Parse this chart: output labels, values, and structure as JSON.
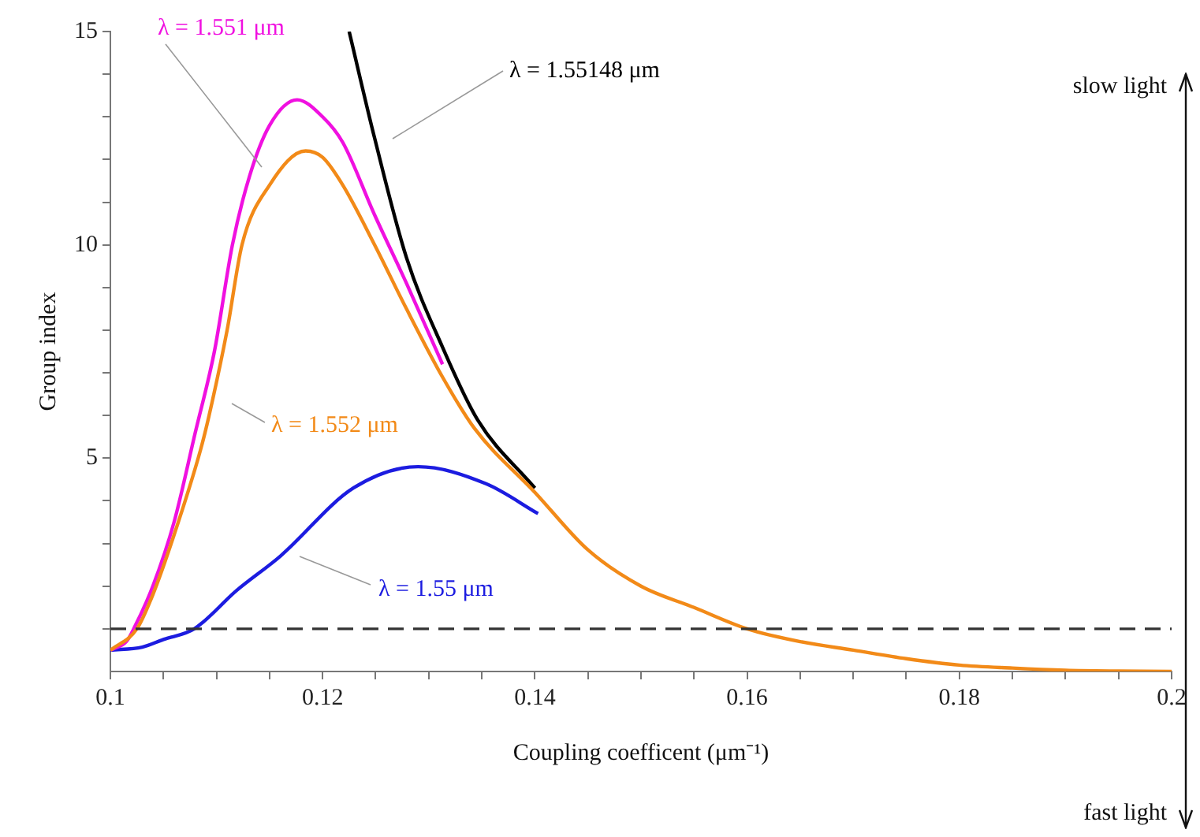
{
  "chart_data": {
    "type": "line",
    "xlabel": "Coupling coefficent (μm⁻¹)",
    "ylabel": "Group index",
    "xlim": [
      0.1,
      0.2
    ],
    "ylim": [
      0,
      15
    ],
    "xticks": [
      0.1,
      {
        "value": 0.105,
        "label": null
      },
      0.12,
      {
        "value": 0.11,
        "label": null
      },
      {
        "value": 0.115,
        "label": null
      },
      {
        "value": 0.125,
        "label": null
      },
      {
        "value": 0.13,
        "label": null
      },
      {
        "value": 0.135,
        "label": null
      },
      0.14,
      {
        "value": 0.145,
        "label": null
      },
      {
        "value": 0.15,
        "label": null
      },
      {
        "value": 0.155,
        "label": null
      },
      0.16,
      {
        "value": 0.165,
        "label": null
      },
      {
        "value": 0.17,
        "label": null
      },
      {
        "value": 0.175,
        "label": null
      },
      0.18,
      {
        "value": 0.185,
        "label": null
      },
      {
        "value": 0.19,
        "label": null
      },
      {
        "value": 0.195,
        "label": null
      },
      0.2
    ],
    "yticks": [
      {
        "value": 1,
        "label": null
      },
      {
        "value": 2,
        "label": null
      },
      {
        "value": 3,
        "label": null
      },
      {
        "value": 4,
        "label": null
      },
      5,
      {
        "value": 6,
        "label": null
      },
      {
        "value": 7,
        "label": null
      },
      {
        "value": 8,
        "label": null
      },
      {
        "value": 9,
        "label": null
      },
      10,
      {
        "value": 11,
        "label": null
      },
      {
        "value": 12,
        "label": null
      },
      {
        "value": 13,
        "label": null
      },
      {
        "value": 14,
        "label": null
      },
      15
    ],
    "series": [
      {
        "name": "λ = 1.552 μm",
        "color": "#f28a18",
        "x": [
          0.1,
          0.1025,
          0.104,
          0.106,
          0.1085,
          0.1093,
          0.111,
          0.1124,
          0.115,
          0.1184,
          0.12,
          0.1219,
          0.1249,
          0.1279,
          0.1313,
          0.1343,
          0.14,
          0.145,
          0.15,
          0.155,
          0.16,
          0.165,
          0.17,
          0.175,
          0.18,
          0.185,
          0.19,
          0.195,
          0.2
        ],
        "values": [
          0.5,
          1.0,
          1.8,
          3.2,
          5.2,
          6.0,
          8.0,
          10.0,
          11.4,
          12.2,
          12.05,
          11.4,
          10.0,
          8.5,
          6.9,
          5.7,
          4.2,
          2.85,
          2.0,
          1.5,
          1.0,
          0.7,
          0.5,
          0.3,
          0.15,
          0.08,
          0.03,
          0.01,
          0.0
        ]
      },
      {
        "name": "λ = 1.551 μm",
        "color": "#f010e0",
        "x": [
          0.1,
          0.1015,
          0.1022,
          0.104,
          0.106,
          0.108,
          0.1098,
          0.1115,
          0.1131,
          0.115,
          0.1176,
          0.12,
          0.1219,
          0.1249,
          0.1279,
          0.1313
        ],
        "values": [
          0.5,
          0.7,
          1.0,
          2.0,
          3.5,
          5.6,
          7.5,
          10.0,
          11.6,
          12.8,
          13.4,
          13.0,
          12.4,
          10.7,
          9.1,
          7.2
        ]
      },
      {
        "name": "λ = 1.55148 μm",
        "color": "#000000",
        "x": [
          0.1225,
          0.1249,
          0.1279,
          0.1313,
          0.1346,
          0.14
        ],
        "values": [
          15.0,
          12.5,
          9.7,
          7.6,
          5.9,
          4.3
        ]
      },
      {
        "name": "λ = 1.55 μm",
        "color": "#1c1ce0",
        "x": [
          0.1,
          0.103,
          0.105,
          0.1079,
          0.1119,
          0.116,
          0.1229,
          0.129,
          0.1354,
          0.1403
        ],
        "values": [
          0.5,
          0.57,
          0.75,
          1.0,
          1.9,
          2.7,
          4.3,
          4.8,
          4.4,
          3.7
        ]
      }
    ],
    "ref_lines": [
      {
        "axis": "y",
        "value": 1,
        "color": "#333333",
        "line_style": "dashed"
      }
    ],
    "annotations": [
      "slow light",
      "fast light"
    ]
  }
}
